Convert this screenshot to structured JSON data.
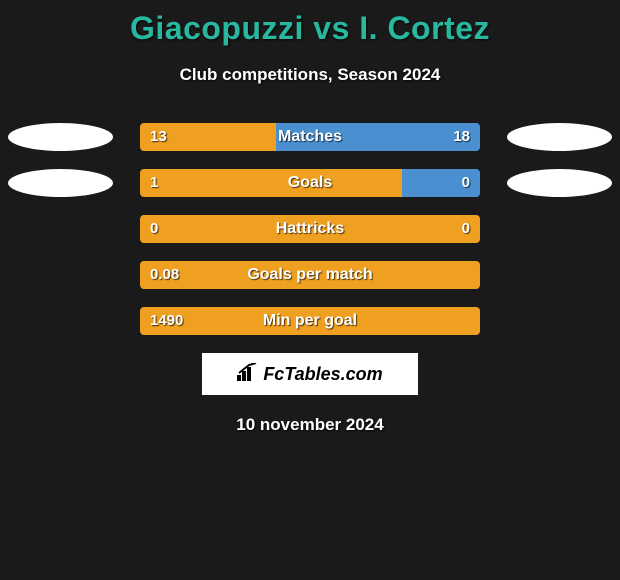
{
  "title": {
    "player1": "Giacopuzzi",
    "vs": "vs",
    "player2": "I. Cortez",
    "color": "#28b8a0"
  },
  "subtitle": "Club competitions, Season 2024",
  "colors": {
    "p1": "#f0a020",
    "p2": "#4a90d0",
    "bg": "#1a1a1a",
    "text": "#ffffff"
  },
  "bar_area_width": 340,
  "stats": [
    {
      "label": "Matches",
      "v1": "13",
      "v2": "18",
      "p1_pct": 40,
      "p2_pct": 60,
      "avatar_p1": true,
      "avatar_p2": true
    },
    {
      "label": "Goals",
      "v1": "1",
      "v2": "0",
      "p1_pct": 77,
      "p2_pct": 23,
      "avatar_p1": true,
      "avatar_p2": true
    },
    {
      "label": "Hattricks",
      "v1": "0",
      "v2": "0",
      "p1_pct": 100,
      "p2_pct": 0,
      "avatar_p1": false,
      "avatar_p2": false
    },
    {
      "label": "Goals per match",
      "v1": "0.08",
      "v2": "",
      "p1_pct": 100,
      "p2_pct": 0,
      "avatar_p1": false,
      "avatar_p2": false
    },
    {
      "label": "Min per goal",
      "v1": "1490",
      "v2": "",
      "p1_pct": 100,
      "p2_pct": 0,
      "avatar_p1": false,
      "avatar_p2": false
    }
  ],
  "logo_text": "FcTables.com",
  "date": "10 november 2024"
}
